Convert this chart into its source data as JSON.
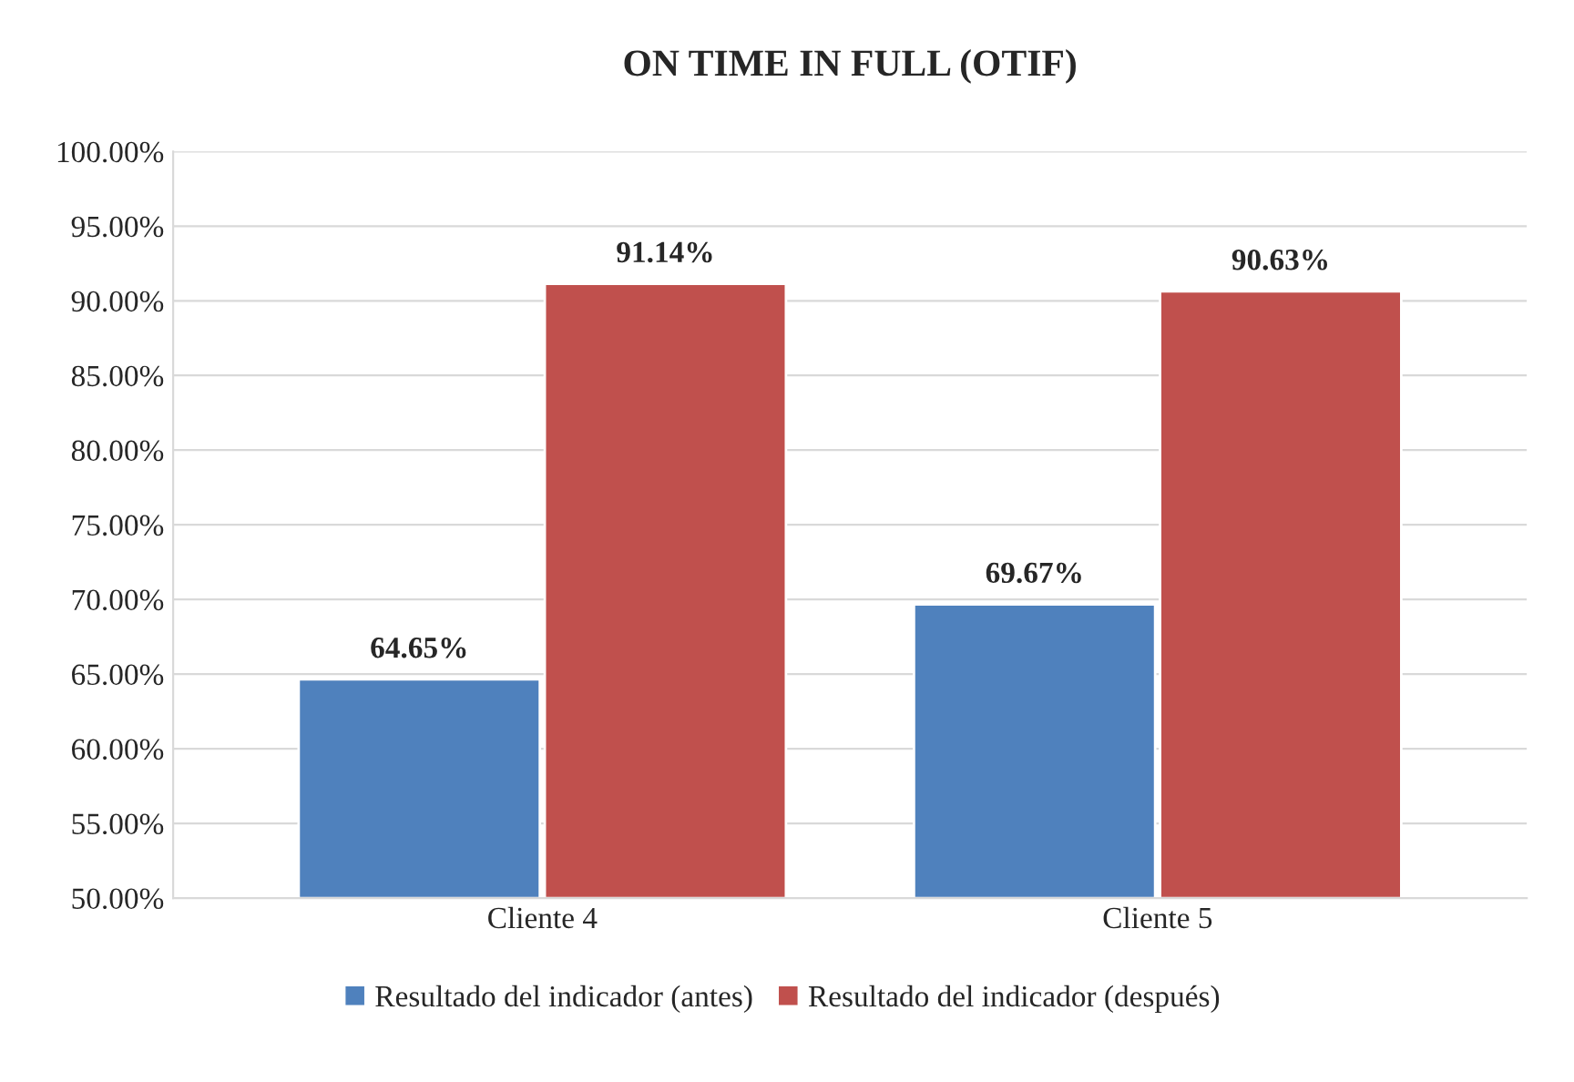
{
  "chart_data": {
    "type": "bar",
    "title": "ON TIME IN FULL (OTIF)",
    "categories": [
      "Cliente 4",
      "Cliente 5"
    ],
    "series": [
      {
        "name": "Resultado del indicador (antes)",
        "color": "#4f81bd",
        "values": [
          64.65,
          69.67
        ],
        "value_labels": [
          "64.65%",
          "69.67%"
        ]
      },
      {
        "name": "Resultado del indicador (después)",
        "color": "#c0504d",
        "values": [
          91.14,
          90.63
        ],
        "value_labels": [
          "91.14%",
          "90.63%"
        ]
      }
    ],
    "ylim": [
      50,
      100
    ],
    "yticks": [
      {
        "value": 50,
        "label": "50.00%"
      },
      {
        "value": 55,
        "label": "55.00%"
      },
      {
        "value": 60,
        "label": "60.00%"
      },
      {
        "value": 65,
        "label": "65.00%"
      },
      {
        "value": 70,
        "label": "70.00%"
      },
      {
        "value": 75,
        "label": "75.00%"
      },
      {
        "value": 80,
        "label": "80.00%"
      },
      {
        "value": 85,
        "label": "85.00%"
      },
      {
        "value": 90,
        "label": "90.00%"
      },
      {
        "value": 95,
        "label": "95.00%"
      },
      {
        "value": 100,
        "label": "100.00%"
      }
    ],
    "grid": "y",
    "legend": "bottom"
  }
}
